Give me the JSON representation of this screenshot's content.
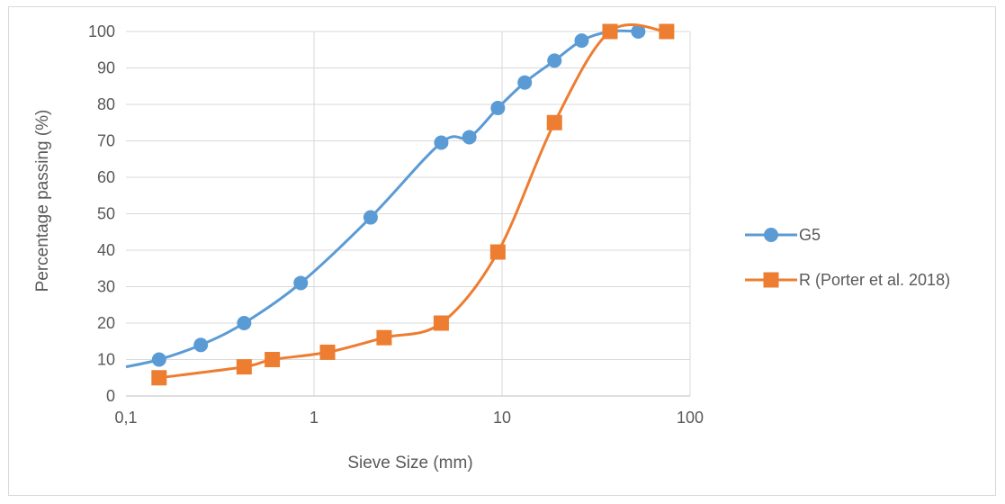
{
  "chart_data": {
    "type": "line",
    "title": "",
    "xlabel": "Sieve Size (mm)",
    "ylabel": "Percentage passing (%)",
    "xscale": "log",
    "xlim": [
      0.1,
      100
    ],
    "ylim": [
      0,
      100
    ],
    "x_tick_labels": [
      "0,1",
      "1",
      "10",
      "100"
    ],
    "y_tick_labels": [
      "0",
      "10",
      "20",
      "30",
      "40",
      "50",
      "60",
      "70",
      "80",
      "90",
      "100"
    ],
    "grid": true,
    "legend_position": "right",
    "series": [
      {
        "name": "G5",
        "color": "#5b9bd5",
        "marker": "circle",
        "x": [
          0.15,
          0.25,
          0.425,
          0.85,
          2,
          4.75,
          6.7,
          9.5,
          13.2,
          19,
          26.5,
          37.5,
          53
        ],
        "y": [
          10,
          14,
          20,
          31,
          49,
          69.5,
          71,
          79,
          86,
          92,
          97.5,
          100,
          100
        ],
        "line_extends_left_to": {
          "x": 0.1,
          "y": 8
        }
      },
      {
        "name": "R (Porter et al. 2018)",
        "color": "#ed7d31",
        "marker": "square",
        "x": [
          0.15,
          0.425,
          0.6,
          1.18,
          2.36,
          4.75,
          9.5,
          19,
          37.5,
          75
        ],
        "y": [
          5,
          8,
          10,
          12,
          16,
          20,
          39.5,
          75,
          100,
          100
        ]
      }
    ]
  }
}
